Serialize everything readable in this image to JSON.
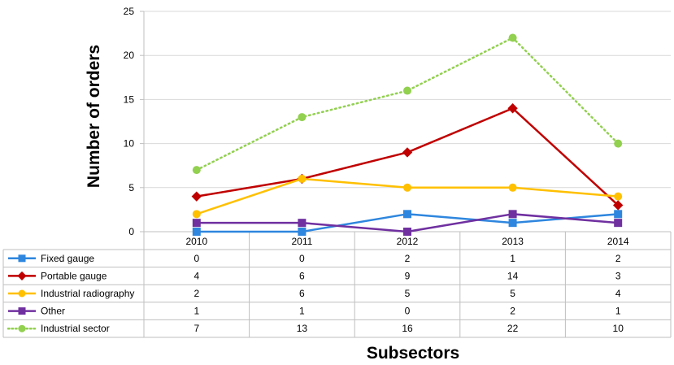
{
  "chart_data": {
    "type": "line",
    "title": "",
    "xlabel": "Subsectors",
    "ylabel": "Number of orders",
    "categories": [
      "2010",
      "2011",
      "2012",
      "2013",
      "2014"
    ],
    "ylim": [
      0,
      25
    ],
    "yticks": [
      "0",
      "5",
      "10",
      "15",
      "20",
      "25"
    ],
    "grid": true,
    "legend": "data table",
    "series": [
      {
        "name": "Fixed gauge",
        "values": [
          0,
          0,
          2,
          1,
          2
        ],
        "color": "#2e86de",
        "marker": "square",
        "style": "solid"
      },
      {
        "name": "Portable gauge",
        "values": [
          4,
          6,
          9,
          14,
          3
        ],
        "color": "#c00000",
        "marker": "diamond",
        "style": "solid"
      },
      {
        "name": "Industrial radiography",
        "values": [
          2,
          6,
          5,
          5,
          4
        ],
        "color": "#ffc000",
        "marker": "circle",
        "style": "solid"
      },
      {
        "name": "Other",
        "values": [
          1,
          1,
          0,
          2,
          1
        ],
        "color": "#7030a0",
        "marker": "square",
        "style": "solid"
      },
      {
        "name": "Industrial sector",
        "values": [
          7,
          13,
          16,
          22,
          10
        ],
        "color": "#92d050",
        "marker": "circle",
        "style": "dotted"
      }
    ]
  }
}
